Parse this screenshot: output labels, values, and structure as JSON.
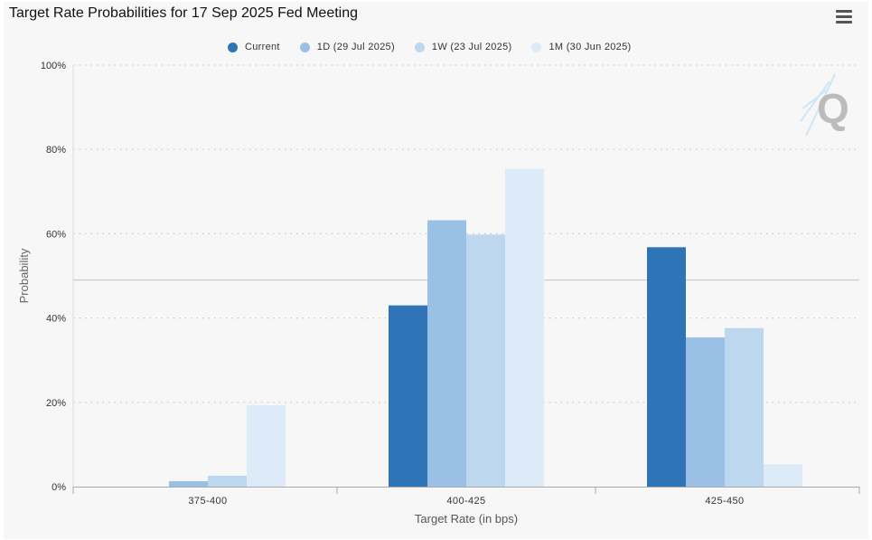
{
  "page": {
    "title": "Target Rate Probabilities for 17 Sep 2025 Fed Meeting",
    "watermark_text": "Q"
  },
  "colors": {
    "background": "#f7f7f7",
    "grid": "#c8c8c8",
    "axis": "#aaaaaa",
    "text": "#333333"
  },
  "chart_data": {
    "type": "bar",
    "title": "Target Rate Probabilities for 17 Sep 2025 Fed Meeting",
    "xlabel": "Target Rate (in bps)",
    "ylabel": "Probability",
    "categories": [
      "375-400",
      "400-425",
      "425-450"
    ],
    "ylim": [
      0,
      100
    ],
    "yticks": [
      0,
      20,
      40,
      60,
      80,
      100
    ],
    "ytick_labels": [
      "0%",
      "20%",
      "40%",
      "60%",
      "80%",
      "100%"
    ],
    "grid": true,
    "legend": "top-center",
    "series": [
      {
        "name": "Current",
        "color": "#2f74b6",
        "values": [
          0,
          43,
          56.8
        ]
      },
      {
        "name": "1D (29 Jul 2025)",
        "color": "#9bc0e5",
        "values": [
          1.3,
          63.2,
          35.4
        ]
      },
      {
        "name": "1W (23 Jul 2025)",
        "color": "#bdd7ee",
        "values": [
          2.6,
          59.8,
          37.6
        ]
      },
      {
        "name": "1M (30 Jun 2025)",
        "color": "#ddeaf7",
        "values": [
          19.3,
          75.4,
          5.3
        ]
      }
    ],
    "reference_line": {
      "value": 49
    }
  }
}
